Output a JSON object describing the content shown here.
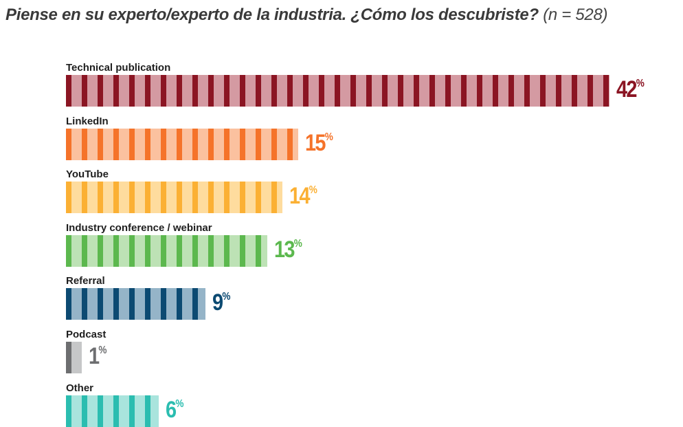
{
  "chart_data": {
    "type": "bar",
    "orientation": "horizontal",
    "title": "Piense en su experto/experto de la industria. ¿Cómo los descubriste?",
    "subtitle": "(n = 528)",
    "categories": [
      "Technical publication",
      "LinkedIn",
      "YouTube",
      "Industry conference / webinar",
      "Referral",
      "Podcast",
      "Other"
    ],
    "values": [
      42,
      15,
      14,
      13,
      9,
      1,
      6
    ],
    "unit": "%",
    "colors": [
      {
        "dark": "#8b1523",
        "light": "#d49aa2"
      },
      {
        "dark": "#f5732a",
        "light": "#fbc19f"
      },
      {
        "dark": "#fbb034",
        "light": "#fedc9e"
      },
      {
        "dark": "#5cb84e",
        "light": "#bde2b5"
      },
      {
        "dark": "#0c4a72",
        "light": "#95b4c8"
      },
      {
        "dark": "#6d6e70",
        "light": "#c6c7c8"
      },
      {
        "dark": "#2bbdb0",
        "light": "#a9e4dd"
      }
    ],
    "grid": false,
    "legend": "none"
  }
}
